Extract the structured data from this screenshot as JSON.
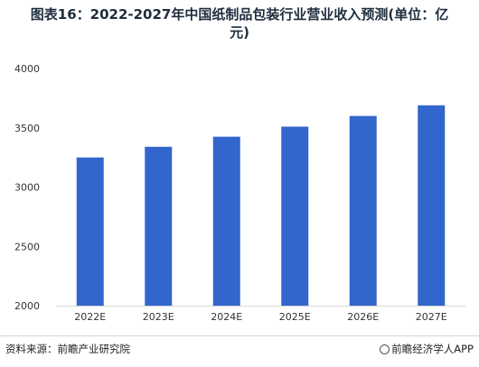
{
  "title": {
    "line1": "图表16：2022-2027年中国纸制品包装行业营业收入预测(单位：亿",
    "line2": "元)"
  },
  "chart_data": {
    "type": "bar",
    "categories": [
      "2022E",
      "2023E",
      "2024E",
      "2025E",
      "2026E",
      "2027E"
    ],
    "values": [
      3250,
      3340,
      3425,
      3510,
      3600,
      3690
    ],
    "ylim": [
      2000,
      4000
    ],
    "yticks": [
      2000,
      2500,
      3000,
      3500,
      4000
    ],
    "bar_color": "#3366cc",
    "grid": false,
    "legend": "none"
  },
  "footer": {
    "source": "资料来源：前瞻产业研究院",
    "brand": "前瞻经济学人APP"
  }
}
